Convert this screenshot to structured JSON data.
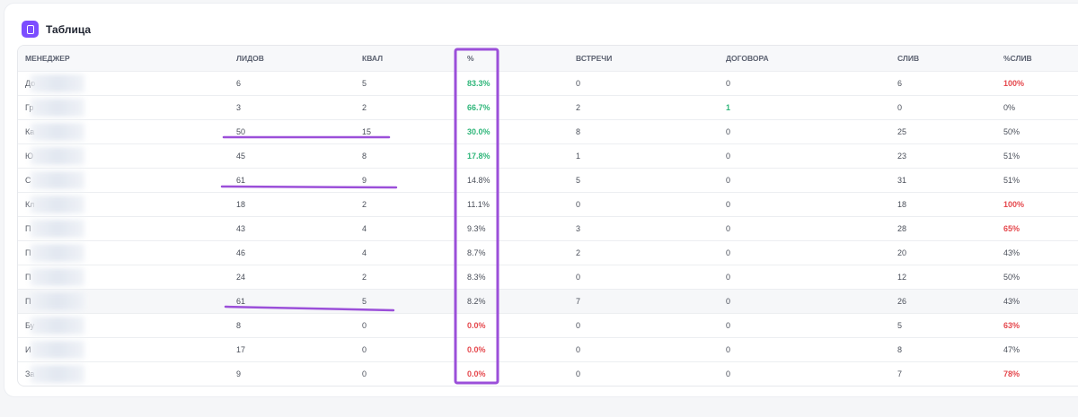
{
  "card": {
    "title": "Таблица",
    "icon": "clipboard-icon"
  },
  "columns": [
    "МЕНЕДЖЕР",
    "ЛИДОВ",
    "КВАЛ",
    "%",
    "ВСТРЕЧИ",
    "ДОГОВОРА",
    "СЛИВ",
    "%СЛИВ"
  ],
  "rows": [
    [
      "До",
      "6",
      "5",
      "83.3%",
      "0",
      "0",
      "6",
      "100%"
    ],
    [
      "Гр",
      "3",
      "2",
      "66.7%",
      "2",
      "1",
      "0",
      "0%"
    ],
    [
      "Ка",
      "50",
      "15",
      "30.0%",
      "8",
      "0",
      "25",
      "50%"
    ],
    [
      "Ю",
      "45",
      "8",
      "17.8%",
      "1",
      "0",
      "23",
      "51%"
    ],
    [
      "С",
      "61",
      "9",
      "14.8%",
      "5",
      "0",
      "31",
      "51%"
    ],
    [
      "Кл",
      "18",
      "2",
      "11.1%",
      "0",
      "0",
      "18",
      "100%"
    ],
    [
      "П",
      "43",
      "4",
      "9.3%",
      "3",
      "0",
      "28",
      "65%"
    ],
    [
      "П",
      "46",
      "4",
      "8.7%",
      "2",
      "0",
      "20",
      "43%"
    ],
    [
      "П",
      "24",
      "2",
      "8.3%",
      "0",
      "0",
      "12",
      "50%"
    ],
    [
      "П",
      "61",
      "5",
      "8.2%",
      "7",
      "0",
      "26",
      "43%"
    ],
    [
      "Бу",
      "8",
      "0",
      "0.0%",
      "0",
      "0",
      "5",
      "63%"
    ],
    [
      "И",
      "17",
      "0",
      "0.0%",
      "0",
      "0",
      "8",
      "47%"
    ],
    [
      "За",
      "9",
      "0",
      "0.0%",
      "0",
      "0",
      "7",
      "78%"
    ]
  ],
  "styles": {
    "pct": [
      "green",
      "green",
      "green",
      "green",
      "",
      "",
      "",
      "",
      "",
      "",
      "red",
      "red",
      "red"
    ],
    "dogovor": [
      "",
      "green",
      "",
      "",
      "",
      "",
      "",
      "",
      "",
      "",
      "",
      "",
      ""
    ],
    "sliv_pct": [
      "red",
      "",
      "",
      "",
      "",
      "red",
      "red",
      "",
      "",
      "",
      "red",
      "",
      "red"
    ]
  },
  "highlighted_row": 9,
  "colors": {
    "accent": "#7c4dff",
    "positive": "#2fb67a",
    "negative": "#e5484d",
    "annotation": "#9b4fd9"
  }
}
